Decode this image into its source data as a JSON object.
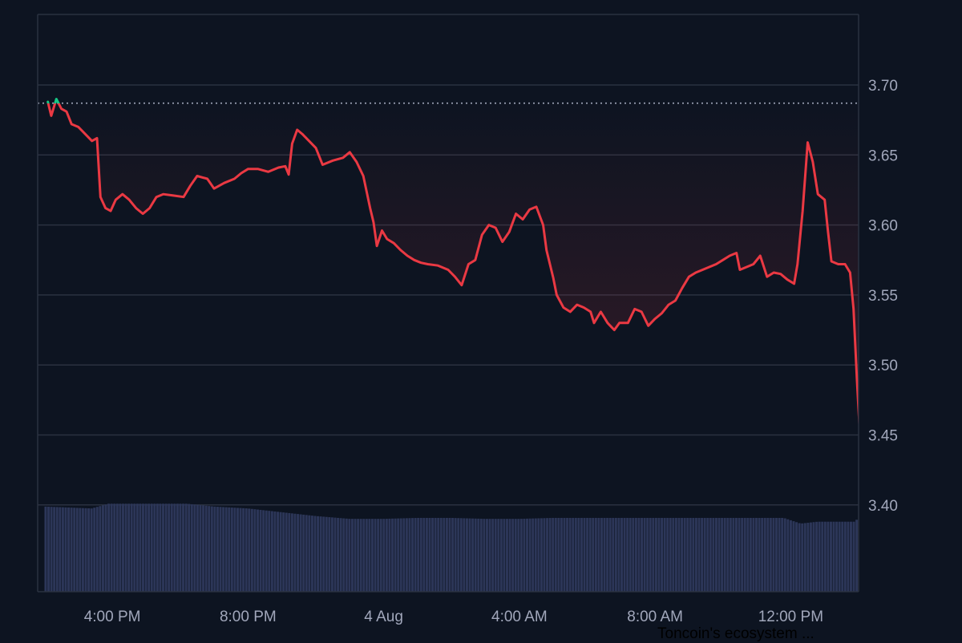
{
  "colors": {
    "background": "#0d1421",
    "line": "#ea3943",
    "line_up": "#16c784",
    "grid": "#2a3140",
    "volume": "#2c3658",
    "baseline": "#a1a7bb",
    "tick_text": "#a1a7bb"
  },
  "caption": "Toncoin's ecosystem ...",
  "chart_data": {
    "type": "area",
    "title": "",
    "xlabel": "",
    "ylabel": "",
    "x_ticks": [
      {
        "label": "4:00 PM",
        "h": 4
      },
      {
        "label": "8:00 PM",
        "h": 8
      },
      {
        "label": "4 Aug",
        "h": 12
      },
      {
        "label": "4:00 AM",
        "h": 16
      },
      {
        "label": "8:00 AM",
        "h": 20
      },
      {
        "label": "12:00 PM",
        "h": 24
      }
    ],
    "xlim_hours": [
      1.8,
      26.0
    ],
    "ylim": [
      3.4,
      3.7
    ],
    "y_ticks": [
      "3.70",
      "3.65",
      "3.60",
      "3.55",
      "3.50",
      "3.45",
      "3.40"
    ],
    "baseline_value": 3.687,
    "grid": true,
    "price_series": {
      "name": "Price",
      "points": [
        [
          2.1,
          3.688
        ],
        [
          2.2,
          3.678
        ],
        [
          2.35,
          3.69
        ],
        [
          2.5,
          3.683
        ],
        [
          2.65,
          3.681
        ],
        [
          2.8,
          3.672
        ],
        [
          3.0,
          3.67
        ],
        [
          3.2,
          3.665
        ],
        [
          3.4,
          3.66
        ],
        [
          3.55,
          3.662
        ],
        [
          3.65,
          3.62
        ],
        [
          3.8,
          3.612
        ],
        [
          3.95,
          3.61
        ],
        [
          4.1,
          3.618
        ],
        [
          4.3,
          3.622
        ],
        [
          4.5,
          3.618
        ],
        [
          4.7,
          3.612
        ],
        [
          4.9,
          3.608
        ],
        [
          5.1,
          3.612
        ],
        [
          5.3,
          3.62
        ],
        [
          5.5,
          3.622
        ],
        [
          5.8,
          3.621
        ],
        [
          6.1,
          3.62
        ],
        [
          6.3,
          3.628
        ],
        [
          6.5,
          3.635
        ],
        [
          6.8,
          3.633
        ],
        [
          7.0,
          3.626
        ],
        [
          7.3,
          3.63
        ],
        [
          7.6,
          3.633
        ],
        [
          7.8,
          3.637
        ],
        [
          8.0,
          3.64
        ],
        [
          8.3,
          3.64
        ],
        [
          8.6,
          3.638
        ],
        [
          8.9,
          3.641
        ],
        [
          9.1,
          3.642
        ],
        [
          9.2,
          3.636
        ],
        [
          9.3,
          3.658
        ],
        [
          9.45,
          3.668
        ],
        [
          9.6,
          3.665
        ],
        [
          9.8,
          3.66
        ],
        [
          10.0,
          3.655
        ],
        [
          10.2,
          3.643
        ],
        [
          10.5,
          3.646
        ],
        [
          10.8,
          3.648
        ],
        [
          11.0,
          3.652
        ],
        [
          11.2,
          3.645
        ],
        [
          11.4,
          3.635
        ],
        [
          11.6,
          3.612
        ],
        [
          11.7,
          3.602
        ],
        [
          11.8,
          3.585
        ],
        [
          11.95,
          3.596
        ],
        [
          12.1,
          3.59
        ],
        [
          12.3,
          3.587
        ],
        [
          12.5,
          3.582
        ],
        [
          12.7,
          3.578
        ],
        [
          12.9,
          3.575
        ],
        [
          13.1,
          3.573
        ],
        [
          13.3,
          3.572
        ],
        [
          13.6,
          3.571
        ],
        [
          13.9,
          3.568
        ],
        [
          14.1,
          3.563
        ],
        [
          14.3,
          3.557
        ],
        [
          14.5,
          3.572
        ],
        [
          14.7,
          3.575
        ],
        [
          14.9,
          3.593
        ],
        [
          15.1,
          3.6
        ],
        [
          15.3,
          3.598
        ],
        [
          15.5,
          3.588
        ],
        [
          15.7,
          3.595
        ],
        [
          15.9,
          3.608
        ],
        [
          16.1,
          3.604
        ],
        [
          16.3,
          3.611
        ],
        [
          16.5,
          3.613
        ],
        [
          16.7,
          3.6
        ],
        [
          16.8,
          3.582
        ],
        [
          17.0,
          3.562
        ],
        [
          17.1,
          3.55
        ],
        [
          17.3,
          3.541
        ],
        [
          17.5,
          3.538
        ],
        [
          17.7,
          3.543
        ],
        [
          17.9,
          3.541
        ],
        [
          18.1,
          3.538
        ],
        [
          18.2,
          3.53
        ],
        [
          18.4,
          3.538
        ],
        [
          18.6,
          3.53
        ],
        [
          18.8,
          3.525
        ],
        [
          18.95,
          3.53
        ],
        [
          19.2,
          3.53
        ],
        [
          19.4,
          3.54
        ],
        [
          19.6,
          3.538
        ],
        [
          19.8,
          3.528
        ],
        [
          20.0,
          3.533
        ],
        [
          20.2,
          3.537
        ],
        [
          20.4,
          3.543
        ],
        [
          20.6,
          3.546
        ],
        [
          20.8,
          3.555
        ],
        [
          21.0,
          3.563
        ],
        [
          21.2,
          3.566
        ],
        [
          21.4,
          3.568
        ],
        [
          21.6,
          3.57
        ],
        [
          21.8,
          3.572
        ],
        [
          22.0,
          3.575
        ],
        [
          22.2,
          3.578
        ],
        [
          22.4,
          3.58
        ],
        [
          22.5,
          3.568
        ],
        [
          22.7,
          3.57
        ],
        [
          22.9,
          3.572
        ],
        [
          23.1,
          3.578
        ],
        [
          23.3,
          3.563
        ],
        [
          23.5,
          3.566
        ],
        [
          23.7,
          3.565
        ],
        [
          23.9,
          3.561
        ],
        [
          24.1,
          3.558
        ],
        [
          24.2,
          3.572
        ],
        [
          24.35,
          3.61
        ],
        [
          24.5,
          3.659
        ],
        [
          24.65,
          3.645
        ],
        [
          24.8,
          3.622
        ],
        [
          25.0,
          3.618
        ],
        [
          25.1,
          3.595
        ],
        [
          25.2,
          3.574
        ],
        [
          25.4,
          3.572
        ],
        [
          25.6,
          3.572
        ],
        [
          25.75,
          3.566
        ],
        [
          25.85,
          3.54
        ],
        [
          25.95,
          3.49
        ],
        [
          26.05,
          3.446
        ],
        [
          26.15,
          3.455
        ],
        [
          26.3,
          3.464
        ],
        [
          26.4,
          3.46
        ],
        [
          26.5,
          3.458
        ]
      ]
    },
    "volume_series": {
      "name": "Volume",
      "points": [
        [
          2.0,
          0.9
        ],
        [
          3.4,
          0.88
        ],
        [
          3.9,
          0.93
        ],
        [
          5.0,
          0.93
        ],
        [
          6.2,
          0.93
        ],
        [
          7.0,
          0.9
        ],
        [
          8.0,
          0.88
        ],
        [
          9.0,
          0.84
        ],
        [
          10.0,
          0.8
        ],
        [
          11.0,
          0.77
        ],
        [
          12.0,
          0.77
        ],
        [
          13.0,
          0.78
        ],
        [
          14.0,
          0.78
        ],
        [
          15.0,
          0.77
        ],
        [
          16.0,
          0.77
        ],
        [
          17.0,
          0.78
        ],
        [
          18.0,
          0.78
        ],
        [
          19.0,
          0.78
        ],
        [
          20.0,
          0.78
        ],
        [
          21.0,
          0.78
        ],
        [
          22.0,
          0.78
        ],
        [
          23.0,
          0.78
        ],
        [
          23.8,
          0.78
        ],
        [
          24.3,
          0.72
        ],
        [
          24.8,
          0.74
        ],
        [
          25.5,
          0.74
        ],
        [
          25.9,
          0.74
        ],
        [
          26.1,
          0.82
        ],
        [
          26.5,
          0.85
        ]
      ]
    }
  }
}
